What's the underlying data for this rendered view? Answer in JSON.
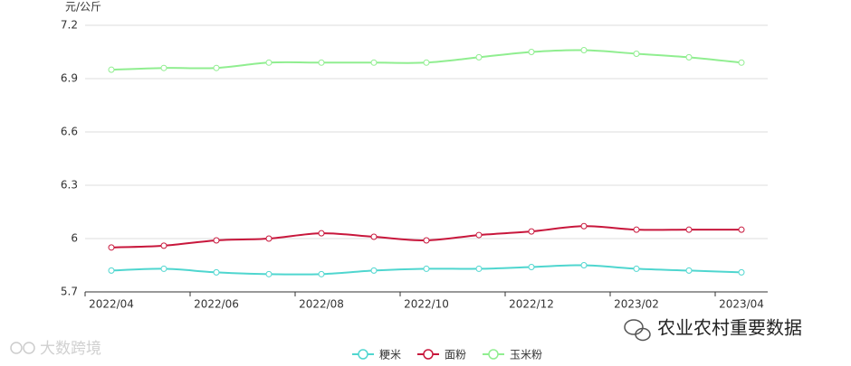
{
  "chart_data": {
    "type": "line",
    "y_axis_label": "元/公斤",
    "categories": [
      "2022/04",
      null,
      "2022/06",
      null,
      "2022/08",
      null,
      "2022/10",
      null,
      "2022/12",
      null,
      "2023/02",
      null,
      "2023/04"
    ],
    "series": [
      {
        "name": "粳米",
        "color": "#4fd6cf",
        "values": [
          5.82,
          5.83,
          5.81,
          5.8,
          5.8,
          5.82,
          5.83,
          5.83,
          5.84,
          5.85,
          5.83,
          5.82,
          5.81
        ]
      },
      {
        "name": "面粉",
        "color": "#c8173c",
        "values": [
          5.95,
          5.96,
          5.99,
          6.0,
          6.03,
          6.01,
          5.99,
          6.02,
          6.04,
          6.07,
          6.05,
          6.05,
          6.05
        ]
      },
      {
        "name": "玉米粉",
        "color": "#90ee90",
        "values": [
          6.95,
          6.96,
          6.96,
          6.99,
          6.99,
          6.99,
          6.99,
          7.02,
          7.05,
          7.06,
          7.04,
          7.02,
          6.99
        ]
      }
    ],
    "ylim": [
      5.7,
      7.2
    ],
    "yticks": [
      5.7,
      6,
      6.3,
      6.6,
      6.9,
      7.2
    ],
    "grid": true,
    "smooth": true,
    "legend": "bottom",
    "watermarks": [
      "农业农村重要数据",
      "大数跨境"
    ]
  }
}
